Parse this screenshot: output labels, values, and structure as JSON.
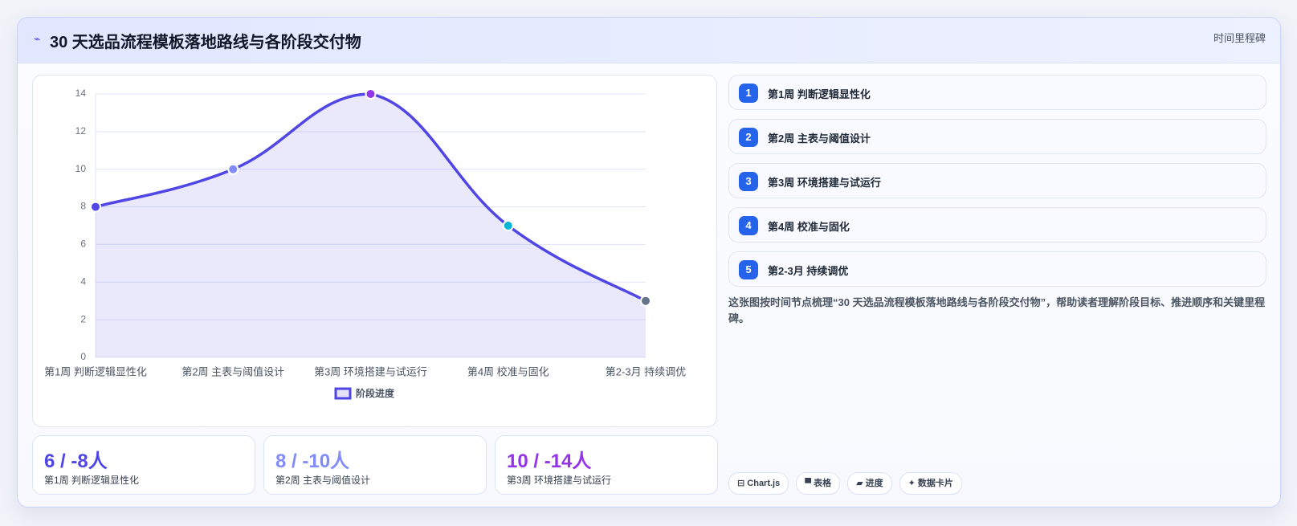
{
  "header": {
    "title": "30 天选品流程模板落地路线与各阶段交付物",
    "badge": "时间里程碑"
  },
  "chart_data": {
    "type": "line",
    "categories": [
      "第1周 判断逻辑显性化",
      "第2周 主表与阈值设计",
      "第3周 环境搭建与试运行",
      "第4周 校准与固化",
      "第2-3月 持续调优"
    ],
    "series": [
      {
        "name": "阶段进度",
        "color": "#4f46e5",
        "values": [
          8,
          10,
          14,
          7,
          3
        ],
        "point_colors": [
          "#4f46e5",
          "#818cf8",
          "#9333ea",
          "#06b6d4",
          "#64748b"
        ]
      }
    ],
    "ylim": [
      0,
      14
    ],
    "yticks": [
      0,
      2,
      4,
      6,
      8,
      10,
      12,
      14
    ],
    "grid": true,
    "legend": "bottom"
  },
  "kpis": [
    {
      "value": "6 / -8人",
      "label": "第1周 判断逻辑显性化",
      "color": "#4f46e5"
    },
    {
      "value": "8 / -10人",
      "label": "第2周 主表与阈值设计",
      "color": "#818cf8"
    },
    {
      "value": "10 / -14人",
      "label": "第3周 环境搭建与试运行",
      "color": "#9333ea"
    }
  ],
  "steps": [
    {
      "number": 1,
      "label": "第1周 判断逻辑显性化"
    },
    {
      "number": 2,
      "label": "第2周 主表与阈值设计"
    },
    {
      "number": 3,
      "label": "第3周 环境搭建与试运行"
    },
    {
      "number": 4,
      "label": "第4周 校准与固化"
    },
    {
      "number": 5,
      "label": "第2-3月 持续调优"
    }
  ],
  "description": "这张图按时间节点梳理“30 天选品流程模板落地路线与各阶段交付物”，帮助读者理解阶段目标、推进顺序和关键里程碑。",
  "tags": [
    "Chart.js",
    "表格",
    "进度",
    "数据卡片"
  ]
}
